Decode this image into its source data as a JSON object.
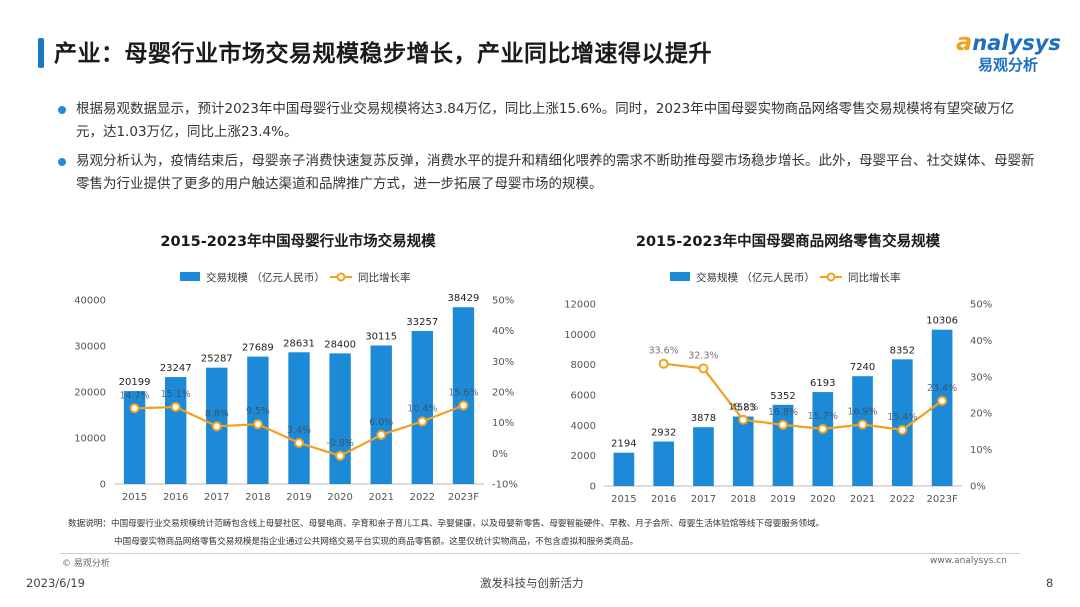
{
  "header": {
    "title": "产业：母婴行业市场交易规模稳步增长，产业同比增速得以提升",
    "logo_en_first": "a",
    "logo_en_rest": "nalysys",
    "logo_cn": "易观分析"
  },
  "bullets": [
    "根据易观数据显示，预计2023年中国母婴行业交易规模将达3.84万亿，同比上涨15.6%。同时，2023年中国母婴实物商品网络零售交易规模将有望突破万亿元，达1.03万亿，同比上涨23.4%。",
    "易观分析认为，疫情结束后，母婴亲子消费快速复苏反弹，消费水平的提升和精细化喂养的需求不断助推母婴市场稳步增长。此外，母婴平台、社交媒体、母婴新零售为行业提供了更多的用户触达渠道和品牌推广方式，进一步拓展了母婴市场的规模。"
  ],
  "chart_data": [
    {
      "type": "bar",
      "title": "2015-2023年中国母婴行业市场交易规模",
      "categories": [
        "2015",
        "2016",
        "2017",
        "2018",
        "2019",
        "2020",
        "2021",
        "2022",
        "2023F"
      ],
      "series": [
        {
          "name": "交易规模 （亿元人民币）",
          "type": "bar",
          "axis": "left",
          "values": [
            20199,
            23247,
            25287,
            27689,
            28631,
            28400,
            30115,
            33257,
            38429
          ],
          "color": "#1d8ad8"
        },
        {
          "name": "同比增长率",
          "type": "line",
          "axis": "right",
          "values": [
            14.7,
            15.1,
            8.8,
            9.5,
            3.4,
            -0.8,
            6.0,
            10.4,
            15.6
          ],
          "color": "#f2a01e"
        }
      ],
      "left_axis": {
        "min": 0,
        "max": 40000,
        "ticks": [
          "0",
          "10000",
          "20000",
          "30000",
          "40000"
        ]
      },
      "right_axis": {
        "min": -10,
        "max": 50,
        "ticks": [
          "-10%",
          "0%",
          "10%",
          "20%",
          "30%",
          "40%",
          "50%"
        ]
      },
      "rate_labels": [
        "14.7%",
        "15.1%",
        "8.8%",
        "9.5%",
        "3.4%",
        "-0.8%",
        "6.0%",
        "10.4%",
        "15.6%"
      ],
      "legend_position": "top-center",
      "grid": false
    },
    {
      "type": "bar",
      "title": "2015-2023年中国母婴商品网络零售交易规模",
      "categories": [
        "2015",
        "2016",
        "2017",
        "2018",
        "2019",
        "2020",
        "2021",
        "2022",
        "2023F"
      ],
      "series": [
        {
          "name": "交易规模 （亿元人民币）",
          "type": "bar",
          "axis": "left",
          "values": [
            2194,
            2932,
            3878,
            4583,
            5352,
            6193,
            7240,
            8352,
            10306
          ],
          "color": "#1d8ad8"
        },
        {
          "name": "同比增长率",
          "type": "line",
          "axis": "right",
          "values": [
            null,
            33.6,
            32.3,
            18.2,
            16.8,
            15.7,
            16.9,
            15.4,
            23.4
          ],
          "color": "#f2a01e"
        }
      ],
      "left_axis": {
        "min": 0,
        "max": 12000,
        "ticks": [
          "0",
          "2000",
          "4000",
          "6000",
          "8000",
          "10000",
          "12000"
        ]
      },
      "right_axis": {
        "min": 0,
        "max": 50,
        "ticks": [
          "0%",
          "10%",
          "20%",
          "30%",
          "40%",
          "50%"
        ]
      },
      "rate_labels": [
        null,
        "33.6%",
        "32.3%",
        "18.2%",
        "16.8%",
        "15.7%",
        "16.9%",
        "15.4%",
        "23.4%"
      ],
      "legend_position": "top-center",
      "grid": false
    }
  ],
  "notes": [
    "数据说明：中国母婴行业交易规模统计范畴包含线上母婴社区、母婴电商、孕育和亲子育儿工具、孕婴健康，以及母婴新零售、母婴智能硬件、早教、月子会所、母婴生活体验馆等线下母婴服务领域。",
    "中国母婴实物商品网络零售交易规模是指企业通过公共网络交易平台实现的商品零售额。这里仅统计实物商品，不包含虚拟和服务类商品。"
  ],
  "footer": {
    "source": "© 易观分析",
    "url": "www.analysys.cn",
    "date": "2023/6/19",
    "slogan": "激发科技与创新活力",
    "page": "8"
  },
  "colors": {
    "accent": "#1d78c1",
    "bar": "#1d8ad8",
    "line": "#f2a01e",
    "logo_blue": "#1d6fc0",
    "logo_orange": "#f2a01e"
  }
}
